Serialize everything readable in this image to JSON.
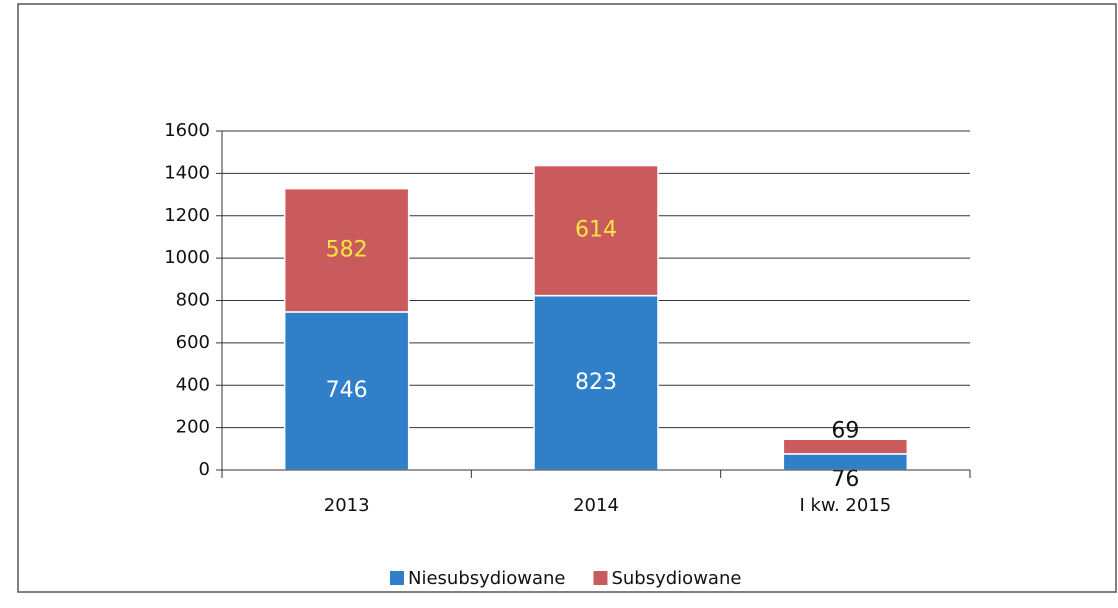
{
  "chart_data": {
    "type": "bar",
    "stacked": true,
    "categories": [
      "2013",
      "2014",
      "I kw. 2015"
    ],
    "series": [
      {
        "name": "Niesubsydiowane",
        "color": "#2f80c9",
        "values": [
          746,
          823,
          76
        ]
      },
      {
        "name": "Subsydiowane",
        "color": "#c95b5c",
        "values": [
          582,
          614,
          69
        ]
      }
    ],
    "ylim": [
      0,
      1600
    ],
    "yticks": [
      0,
      200,
      400,
      600,
      800,
      1000,
      1200,
      1400,
      1600
    ],
    "grid": true,
    "legend": "bottom"
  }
}
